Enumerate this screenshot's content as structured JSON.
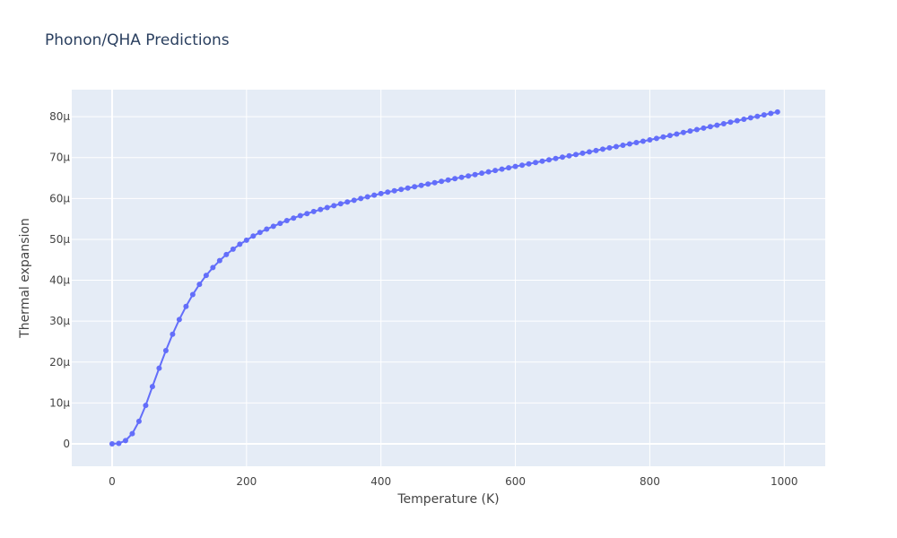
{
  "chart_data": {
    "type": "line",
    "title": "Phonon/QHA Predictions",
    "x_label": "Temperature (K)",
    "y_label": "Thermal expansion",
    "x": [
      0,
      10,
      20,
      30,
      40,
      50,
      60,
      70,
      80,
      90,
      100,
      110,
      120,
      130,
      140,
      150,
      160,
      170,
      180,
      190,
      200,
      210,
      220,
      230,
      240,
      250,
      260,
      270,
      280,
      290,
      300,
      310,
      320,
      330,
      340,
      350,
      360,
      370,
      380,
      390,
      400,
      410,
      420,
      430,
      440,
      450,
      460,
      470,
      480,
      490,
      500,
      510,
      520,
      530,
      540,
      550,
      560,
      570,
      580,
      590,
      600,
      610,
      620,
      630,
      640,
      650,
      660,
      670,
      680,
      690,
      700,
      710,
      720,
      730,
      740,
      750,
      760,
      770,
      780,
      790,
      800,
      810,
      820,
      830,
      840,
      850,
      860,
      870,
      880,
      890,
      900,
      910,
      920,
      930,
      940,
      950,
      960,
      970,
      980,
      990
    ],
    "series": [
      {
        "name": "Thermal expansion",
        "color": "#636efa",
        "values": [
          0,
          1e-07,
          8e-07,
          2.5e-06,
          5.5e-06,
          9.4e-06,
          1.4e-05,
          1.85e-05,
          2.28e-05,
          2.68e-05,
          3.04e-05,
          3.36e-05,
          3.65e-05,
          3.9e-05,
          4.12e-05,
          4.31e-05,
          4.48e-05,
          4.63e-05,
          4.76e-05,
          4.88e-05,
          4.98e-05,
          5.08e-05,
          5.17e-05,
          5.25e-05,
          5.32e-05,
          5.39e-05,
          5.46e-05,
          5.52e-05,
          5.58e-05,
          5.63e-05,
          5.68e-05,
          5.73e-05,
          5.778e-05,
          5.824e-05,
          5.869e-05,
          5.913e-05,
          5.956e-05,
          5.998e-05,
          6.039e-05,
          6.08e-05,
          6.12e-05,
          6.154e-05,
          6.188e-05,
          6.221e-05,
          6.254e-05,
          6.287e-05,
          6.32e-05,
          6.353e-05,
          6.386e-05,
          6.419e-05,
          6.452e-05,
          6.485e-05,
          6.518e-05,
          6.551e-05,
          6.584e-05,
          6.617e-05,
          6.65e-05,
          6.683e-05,
          6.716e-05,
          6.749e-05,
          6.782e-05,
          6.814e-05,
          6.847e-05,
          6.879e-05,
          6.912e-05,
          6.944e-05,
          6.977e-05,
          7.009e-05,
          7.042e-05,
          7.074e-05,
          7.107e-05,
          7.139e-05,
          7.172e-05,
          7.204e-05,
          7.237e-05,
          7.269e-05,
          7.302e-05,
          7.334e-05,
          7.367e-05,
          7.399e-05,
          7.432e-05,
          7.468e-05,
          7.504e-05,
          7.54e-05,
          7.576e-05,
          7.612e-05,
          7.648e-05,
          7.684e-05,
          7.72e-05,
          7.756e-05,
          7.792e-05,
          7.828e-05,
          7.864e-05,
          7.9e-05,
          7.936e-05,
          7.972e-05,
          8.008e-05,
          8.044e-05,
          8.08e-05,
          8.116e-05
        ]
      }
    ],
    "xlim": [
      -60,
      1061
    ],
    "xticks": [
      0,
      200,
      400,
      600,
      800,
      1000
    ],
    "ylim": [
      -5.48e-06,
      8.66e-05
    ],
    "yticks": [
      0,
      {
        "value": 1e-05,
        "label": "10μ"
      },
      {
        "value": 2e-05,
        "label": "20μ"
      },
      {
        "value": 3e-05,
        "label": "30μ"
      },
      {
        "value": 4e-05,
        "label": "40μ"
      },
      {
        "value": 5e-05,
        "label": "50μ"
      },
      {
        "value": 6e-05,
        "label": "60μ"
      },
      {
        "value": 7e-05,
        "label": "70μ"
      },
      {
        "value": 8e-05,
        "label": "80μ"
      }
    ],
    "grid": true
  }
}
